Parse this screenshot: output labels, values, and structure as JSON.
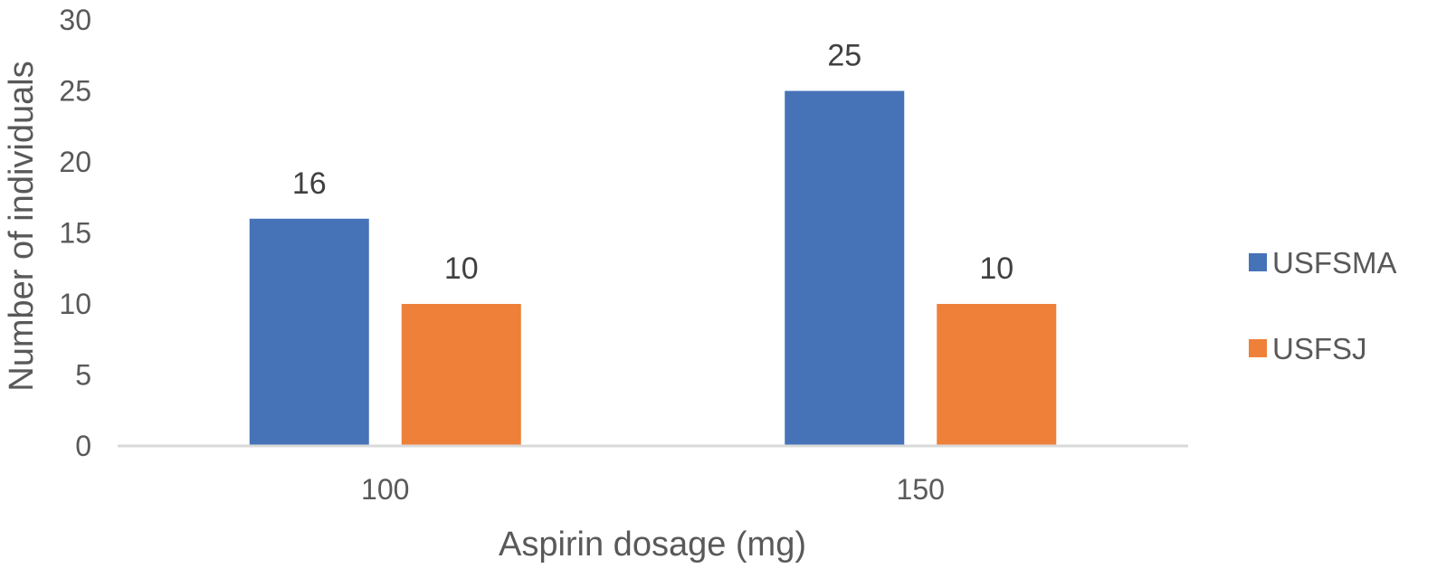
{
  "chart_data": {
    "type": "bar",
    "categories": [
      "100",
      "150"
    ],
    "series": [
      {
        "name": "USFSMA",
        "values": [
          16,
          25
        ],
        "color": "#4672B8"
      },
      {
        "name": "USFSJ",
        "values": [
          10,
          10
        ],
        "color": "#EE803A"
      }
    ],
    "yticks": [
      "0",
      "5",
      "10",
      "15",
      "20",
      "25",
      "30"
    ],
    "ylim": [
      0,
      30
    ],
    "xlabel": "Aspirin dosage (mg)",
    "ylabel": "Number of individuals",
    "title": "",
    "grid": false,
    "legend": "right",
    "axis_color": "#D9D9D9"
  }
}
